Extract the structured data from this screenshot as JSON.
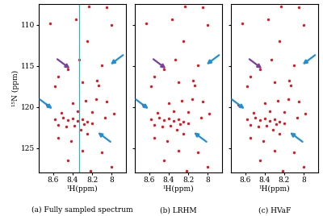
{
  "chart_data": [
    {
      "type": "scatter",
      "title": "(a) Fully sampled spectrum",
      "xlabel": "¹H(ppm)",
      "ylabel": "¹⁵N (ppm)",
      "xlim": [
        8.75,
        7.85
      ],
      "ylim": [
        128,
        107.5
      ],
      "xticks": [
        8.6,
        8.4,
        8.2,
        8
      ],
      "yticks": [
        110,
        115,
        120,
        125
      ],
      "color": "#e8141e",
      "marker": "circle",
      "vline": 8.33,
      "vline_color": "#2cb5c0",
      "x": [
        8.23,
        8.05,
        8.63,
        8.37,
        8.0,
        8.25,
        8.33,
        8.45,
        8.1,
        8.55,
        8.58,
        8.3,
        8.15,
        8.13,
        8.67,
        8.4,
        8.27,
        8.16,
        8.05,
        8.52,
        8.35,
        8.2,
        8.07,
        7.98,
        8.58,
        8.5,
        8.45,
        8.4,
        8.35,
        8.3,
        8.25,
        8.2,
        8.55,
        8.47,
        8.38,
        8.28,
        8.32,
        8.25,
        8.55,
        8.42,
        8.3,
        8.1,
        8.45,
        8.0,
        8.22
      ],
      "y": [
        107.8,
        107.9,
        109.8,
        109.3,
        110.0,
        112.0,
        114.2,
        115.4,
        114.9,
        116.3,
        117.5,
        117.0,
        116.8,
        117.4,
        119.7,
        119.5,
        119.2,
        119.0,
        119.3,
        120.7,
        120.5,
        120.6,
        121.3,
        120.8,
        121.5,
        121.3,
        121.6,
        121.4,
        121.7,
        121.5,
        121.8,
        122.0,
        122.2,
        122.4,
        122.3,
        122.1,
        122.8,
        123.3,
        123.7,
        124.1,
        125.3,
        125.5,
        126.5,
        127.3,
        127.8
      ],
      "arrows": [
        {
          "x": 8.02,
          "y": 114.9,
          "color": "#1f8fd6"
        },
        {
          "x": 8.42,
          "y": 115.4,
          "color": "#7b3fa0"
        },
        {
          "x": 8.6,
          "y": 120.3,
          "color": "#1f8fd6"
        },
        {
          "x": 8.15,
          "y": 123.0,
          "color": "#1f8fd6"
        }
      ]
    },
    {
      "type": "scatter",
      "title": "(b) LRHM",
      "xlabel": "¹H(ppm)",
      "tick_labels": "x",
      "xlim": [
        8.75,
        7.85
      ],
      "ylim": [
        128,
        107.5
      ],
      "xticks": [
        8.6,
        8.4,
        8.2,
        8
      ],
      "yticks": [
        110,
        115,
        120,
        125
      ],
      "color": "#e8141e",
      "marker": "circle",
      "x": [
        8.23,
        8.05,
        8.63,
        8.37,
        8.0,
        8.25,
        8.33,
        8.45,
        8.1,
        8.55,
        8.58,
        8.3,
        8.15,
        8.13,
        8.67,
        8.4,
        8.27,
        8.16,
        8.05,
        8.52,
        8.35,
        8.2,
        8.07,
        7.98,
        8.58,
        8.5,
        8.45,
        8.4,
        8.35,
        8.3,
        8.25,
        8.2,
        8.55,
        8.47,
        8.38,
        8.28,
        8.32,
        8.25,
        8.55,
        8.42,
        8.3,
        8.1,
        8.45,
        8.0,
        8.22
      ],
      "y": [
        107.8,
        107.9,
        109.8,
        109.3,
        110.0,
        112.0,
        114.2,
        115.4,
        114.9,
        116.3,
        117.5,
        117.0,
        116.8,
        117.4,
        119.7,
        119.5,
        119.2,
        119.0,
        119.3,
        120.7,
        120.5,
        120.6,
        121.3,
        120.8,
        121.5,
        121.3,
        121.6,
        121.4,
        121.7,
        121.5,
        121.8,
        122.0,
        122.2,
        122.4,
        122.3,
        122.1,
        122.8,
        123.3,
        123.7,
        124.1,
        125.3,
        125.5,
        126.5,
        127.3,
        127.8
      ],
      "arrows": [
        {
          "x": 8.02,
          "y": 114.9,
          "color": "#1f8fd6"
        },
        {
          "x": 8.42,
          "y": 115.4,
          "color": "#7b3fa0"
        },
        {
          "x": 8.6,
          "y": 120.3,
          "color": "#1f8fd6"
        },
        {
          "x": 8.15,
          "y": 123.0,
          "color": "#1f8fd6"
        }
      ]
    },
    {
      "type": "scatter",
      "title": "(c) HVaF",
      "xlabel": "¹H(ppm)",
      "tick_labels": "x",
      "xlim": [
        8.75,
        7.85
      ],
      "ylim": [
        128,
        107.5
      ],
      "xticks": [
        8.6,
        8.4,
        8.2,
        8
      ],
      "yticks": [
        110,
        115,
        120,
        125
      ],
      "color": "#e8141e",
      "marker": "circle",
      "x": [
        8.23,
        8.05,
        8.63,
        8.37,
        8.0,
        8.25,
        8.33,
        8.45,
        8.1,
        8.55,
        8.58,
        8.3,
        8.15,
        8.13,
        8.67,
        8.4,
        8.27,
        8.16,
        8.05,
        8.52,
        8.35,
        8.2,
        8.07,
        7.98,
        8.58,
        8.5,
        8.45,
        8.4,
        8.35,
        8.3,
        8.25,
        8.2,
        8.55,
        8.47,
        8.38,
        8.28,
        8.32,
        8.25,
        8.55,
        8.42,
        8.3,
        8.1,
        8.45,
        8.0,
        8.22
      ],
      "y": [
        107.8,
        107.9,
        109.8,
        109.3,
        110.0,
        112.0,
        114.2,
        115.4,
        114.9,
        116.3,
        117.5,
        117.0,
        116.8,
        117.4,
        119.7,
        119.5,
        119.2,
        119.0,
        119.3,
        120.7,
        120.5,
        120.6,
        121.3,
        120.8,
        121.5,
        121.3,
        121.6,
        121.4,
        121.7,
        121.5,
        121.8,
        122.0,
        122.2,
        122.4,
        122.3,
        122.1,
        122.8,
        123.3,
        123.7,
        124.1,
        125.3,
        125.5,
        126.5,
        127.3,
        127.8
      ],
      "arrows": [
        {
          "x": 8.02,
          "y": 114.9,
          "color": "#1f8fd6"
        },
        {
          "x": 8.42,
          "y": 115.4,
          "color": "#7b3fa0"
        },
        {
          "x": 8.6,
          "y": 120.3,
          "color": "#1f8fd6"
        },
        {
          "x": 8.15,
          "y": 123.0,
          "color": "#1f8fd6"
        }
      ]
    }
  ]
}
